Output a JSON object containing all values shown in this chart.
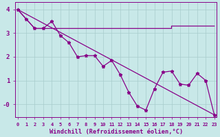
{
  "x": [
    0,
    1,
    2,
    3,
    4,
    5,
    6,
    7,
    8,
    9,
    10,
    11,
    12,
    13,
    14,
    15,
    16,
    17,
    18,
    19,
    20,
    21,
    22,
    23
  ],
  "windchill": [
    4.0,
    3.6,
    3.2,
    3.2,
    3.5,
    2.9,
    2.6,
    2.0,
    2.05,
    2.05,
    1.6,
    1.85,
    1.25,
    0.5,
    -0.08,
    -0.25,
    0.65,
    1.35,
    1.4,
    0.85,
    0.8,
    1.3,
    1.0,
    -0.45
  ],
  "flat_line_x": [
    0,
    2,
    10,
    18,
    18,
    23
  ],
  "flat_line_y": [
    4.0,
    3.2,
    3.2,
    3.2,
    3.3,
    3.3
  ],
  "trend_x": [
    0,
    23
  ],
  "trend_y": [
    4.0,
    -0.45
  ],
  "color": "#880088",
  "bg_color": "#c8e8e8",
  "grid_color": "#a8cccc",
  "xlabel": "Windchill (Refroidissement éolien,°C)",
  "ylim": [
    -0.55,
    4.3
  ],
  "xlim": [
    -0.3,
    23.3
  ],
  "yticks": [
    0,
    1,
    2,
    3,
    4
  ],
  "ytick_labels": [
    "-0",
    "1",
    "2",
    "3",
    "4"
  ],
  "xticks": [
    0,
    1,
    2,
    3,
    4,
    5,
    6,
    7,
    8,
    9,
    10,
    11,
    12,
    13,
    14,
    15,
    16,
    17,
    18,
    19,
    20,
    21,
    22,
    23
  ]
}
